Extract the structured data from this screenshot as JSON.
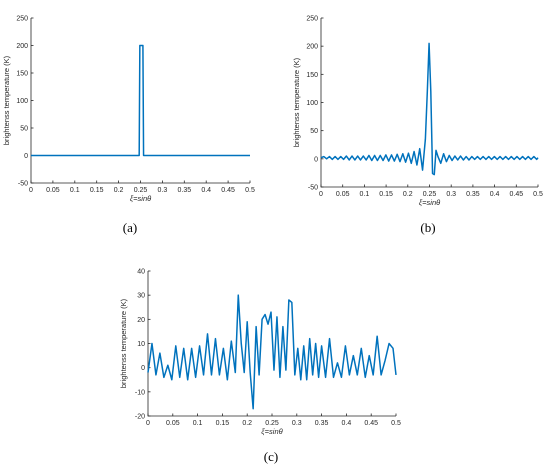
{
  "color": "#0072BD",
  "chart_data": [
    {
      "type": "line",
      "panel_label": "(a)",
      "xlabel": "ξ=sinθ",
      "ylabel": "brightenss temperature (K)",
      "xlim": [
        0,
        0.5
      ],
      "ylim": [
        -50,
        250
      ],
      "xticks": [
        "0",
        "0.05",
        "0.1",
        "0.15",
        "0.2",
        "0.25",
        "0.3",
        "0.35",
        "0.4",
        "0.45",
        "0.5"
      ],
      "yticks": [
        "-50",
        "0",
        "50",
        "100",
        "150",
        "200",
        "250"
      ],
      "series": [
        {
          "x": [
            0,
            0.247,
            0.2485,
            0.2555,
            0.257,
            0.5
          ],
          "y": [
            0,
            0,
            200,
            200,
            0,
            0
          ]
        }
      ]
    },
    {
      "type": "line",
      "panel_label": "(b)",
      "xlabel": "ξ=sinθ",
      "ylabel": "brightenss temperature (K)",
      "xlim": [
        0,
        0.5
      ],
      "ylim": [
        -50,
        250
      ],
      "xticks": [
        "0",
        "0.05",
        "0.1",
        "0.15",
        "0.2",
        "0.25",
        "0.3",
        "0.35",
        "0.4",
        "0.45",
        "0.5"
      ],
      "yticks": [
        "-50",
        "0",
        "50",
        "100",
        "150",
        "200",
        "250"
      ],
      "series": [
        {
          "x": [
            0,
            0.0065,
            0.013,
            0.0195,
            0.026,
            0.0325,
            0.039,
            0.0455,
            0.052,
            0.0585,
            0.065,
            0.0715,
            0.078,
            0.0845,
            0.091,
            0.0975,
            0.104,
            0.1105,
            0.117,
            0.1235,
            0.13,
            0.1365,
            0.143,
            0.1495,
            0.156,
            0.1625,
            0.169,
            0.1755,
            0.182,
            0.1885,
            0.195,
            0.2015,
            0.208,
            0.2145,
            0.221,
            0.2275,
            0.234,
            0.2405,
            0.245,
            0.249,
            0.253,
            0.257,
            0.261,
            0.265,
            0.2695,
            0.276,
            0.2825,
            0.289,
            0.2955,
            0.302,
            0.3085,
            0.315,
            0.3215,
            0.328,
            0.3345,
            0.341,
            0.3475,
            0.354,
            0.3605,
            0.367,
            0.3735,
            0.38,
            0.3865,
            0.393,
            0.3995,
            0.406,
            0.4125,
            0.419,
            0.4255,
            0.432,
            0.4385,
            0.445,
            0.4515,
            0.458,
            0.4645,
            0.471,
            0.4775,
            0.484,
            0.4905,
            0.497,
            0.5
          ],
          "y": [
            2,
            4,
            0,
            4,
            -1,
            4,
            -1,
            4,
            -1,
            5,
            -2,
            5,
            -2,
            5,
            -2,
            5,
            -2,
            6,
            -3,
            6,
            -3,
            6,
            -3,
            7,
            -4,
            7,
            -4,
            8,
            -5,
            9,
            -6,
            10,
            -8,
            13,
            -11,
            18,
            -20,
            35,
            120,
            205,
            120,
            -26,
            -28,
            15,
            4,
            -8,
            9,
            -5,
            6,
            -3,
            5,
            -2,
            5,
            -2,
            4,
            -2,
            4,
            -1,
            4,
            -1,
            4,
            -1,
            4,
            -1,
            4,
            -1,
            4,
            -1,
            4,
            -1,
            4,
            -1,
            4,
            -1,
            4,
            -1,
            4,
            -1,
            4,
            -1,
            2
          ]
        }
      ]
    },
    {
      "type": "line",
      "panel_label": "(c)",
      "xlabel": "ξ=sinθ",
      "ylabel": "brightenss temperature (K)",
      "xlim": [
        0,
        0.5
      ],
      "ylim": [
        -20,
        40
      ],
      "xticks": [
        "0",
        "0.05",
        "0.1",
        "0.15",
        "0.2",
        "0.25",
        "0.3",
        "0.35",
        "0.4",
        "0.45",
        "0.5"
      ],
      "yticks": [
        "-20",
        "-10",
        "0",
        "10",
        "20",
        "30",
        "40"
      ],
      "series": [
        {
          "x": [
            0,
            0.008,
            0.016,
            0.024,
            0.032,
            0.04,
            0.048,
            0.056,
            0.064,
            0.072,
            0.08,
            0.088,
            0.096,
            0.104,
            0.112,
            0.12,
            0.128,
            0.136,
            0.144,
            0.152,
            0.16,
            0.168,
            0.176,
            0.182,
            0.188,
            0.194,
            0.2,
            0.206,
            0.212,
            0.218,
            0.224,
            0.23,
            0.236,
            0.242,
            0.248,
            0.254,
            0.26,
            0.266,
            0.272,
            0.278,
            0.284,
            0.29,
            0.296,
            0.302,
            0.308,
            0.314,
            0.32,
            0.326,
            0.332,
            0.338,
            0.344,
            0.35,
            0.358,
            0.366,
            0.374,
            0.382,
            0.39,
            0.398,
            0.406,
            0.414,
            0.422,
            0.43,
            0.438,
            0.446,
            0.454,
            0.462,
            0.47,
            0.478,
            0.486,
            0.494,
            0.5
          ],
          "y": [
            -2,
            10,
            -3,
            6,
            -4,
            1,
            -5,
            9,
            -4,
            8,
            -5,
            8,
            -4,
            9,
            -3,
            14,
            -3,
            12,
            -3,
            8,
            -5,
            11,
            -2,
            30,
            10,
            -2,
            19,
            -2,
            -17,
            17,
            -3,
            20,
            22,
            18,
            23,
            -1,
            21,
            -4,
            17,
            -1,
            28,
            27,
            -3,
            8,
            -5,
            9,
            -5,
            12,
            -3,
            10,
            -4,
            9,
            -4,
            12,
            -4,
            2,
            -4,
            9,
            -3,
            5,
            -3,
            8,
            -4,
            5,
            -3,
            13,
            -3,
            3,
            10,
            8,
            -3
          ]
        }
      ]
    }
  ]
}
